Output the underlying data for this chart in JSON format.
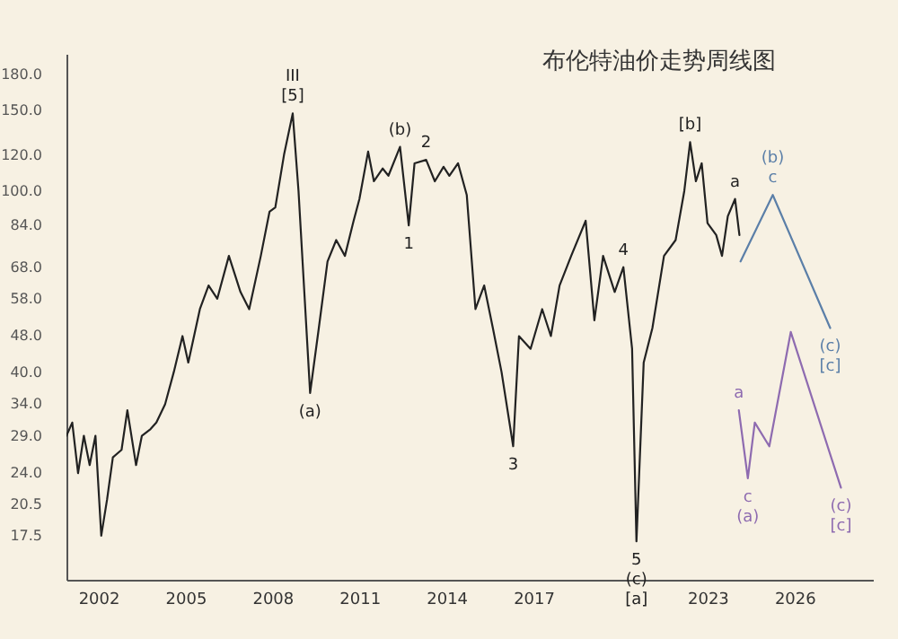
{
  "chart_data": {
    "type": "line",
    "title": "布伦特油价走势周线图",
    "log": true,
    "grid": false,
    "xlim": [
      2000.9,
      2028.7
    ],
    "xticks": [
      2002,
      2005,
      2008,
      2011,
      2014,
      2017,
      2023,
      2026
    ],
    "ylim": [
      14,
      200
    ],
    "yticks": [
      {
        "value": 17.5,
        "label": "17.5"
      },
      {
        "value": 20.5,
        "label": "20.5"
      },
      {
        "value": 24,
        "label": "24.0"
      },
      {
        "value": 29,
        "label": "29.0"
      },
      {
        "value": 34,
        "label": "34.0"
      },
      {
        "value": 40,
        "label": "40.0"
      },
      {
        "value": 48,
        "label": "48.0"
      },
      {
        "value": 58,
        "label": "58.0"
      },
      {
        "value": 68,
        "label": "68.0"
      },
      {
        "value": 84,
        "label": "84.0"
      },
      {
        "value": 100,
        "label": "100.0"
      },
      {
        "value": 120,
        "label": "120.0"
      },
      {
        "value": 150,
        "label": "150.0"
      },
      {
        "value": 180,
        "label": "180.0"
      }
    ],
    "series": [
      {
        "color": "#222222",
        "x": [
          2000.9,
          2001.1,
          2001.3,
          2001.5,
          2001.7,
          2001.9,
          2002.1,
          2002.3,
          2002.5,
          2002.8,
          2003.0,
          2003.3,
          2003.5,
          2003.8,
          2004.0,
          2004.3,
          2004.6,
          2004.9,
          2005.1,
          2005.5,
          2005.8,
          2006.1,
          2006.5,
          2006.9,
          2007.2,
          2007.6,
          2007.9,
          2008.1,
          2008.4,
          2008.7,
          2008.9,
          2009.1,
          2009.3,
          2009.6,
          2009.9,
          2010.2,
          2010.5,
          2010.8,
          2011.0,
          2011.3,
          2011.5,
          2011.8,
          2012.0,
          2012.4,
          2012.7,
          2012.9,
          2013.3,
          2013.6,
          2013.9,
          2014.1,
          2014.4,
          2014.7,
          2015.0,
          2015.3,
          2015.6,
          2015.9,
          2016.3,
          2016.5,
          2016.9,
          2017.3,
          2017.6,
          2017.9,
          2018.3,
          2018.8,
          2019.1,
          2019.4,
          2019.8,
          2020.1,
          2020.4,
          2020.55,
          2020.8,
          2021.1,
          2021.5,
          2021.9,
          2022.2,
          2022.4,
          2022.6,
          2022.8,
          2023.0,
          2023.3,
          2023.5,
          2023.7,
          2023.95,
          2024.1
        ],
        "values": [
          29,
          31,
          24,
          29,
          25,
          29,
          17.5,
          21,
          26,
          27,
          33,
          25,
          29,
          30,
          31,
          34,
          40,
          48,
          42,
          55,
          62,
          58,
          72,
          60,
          55,
          72,
          90,
          92,
          120,
          148,
          100,
          60,
          36,
          50,
          70,
          78,
          72,
          86,
          96,
          122,
          105,
          112,
          108,
          125,
          84,
          115,
          117,
          105,
          113,
          108,
          115,
          98,
          55,
          62,
          50,
          40,
          27.5,
          48,
          45,
          55,
          48,
          62,
          72,
          86,
          52,
          72,
          60,
          68,
          45,
          17,
          42,
          50,
          72,
          78,
          100,
          128,
          105,
          115,
          85,
          80,
          72,
          88,
          96,
          80
        ]
      },
      {
        "color": "#5b7fa8",
        "x": [
          2024.14,
          2025.25,
          2027.23
        ],
        "values": [
          70,
          98,
          50
        ]
      },
      {
        "color": "#8e6bb0",
        "x": [
          2024.08,
          2024.39,
          2024.63,
          2025.13,
          2025.87,
          2027.6
        ],
        "values": [
          33,
          23.4,
          31,
          27.5,
          49,
          22.3
        ]
      }
    ],
    "annotations": [
      {
        "text": "III\n[5]",
        "x": 2008.7,
        "y": 148
      },
      {
        "text": "(a)",
        "x": 2009.3,
        "y": 36
      },
      {
        "text": "(b)",
        "x": 2012.4,
        "y": 125
      },
      {
        "text": "1",
        "x": 2012.7,
        "y": 84
      },
      {
        "text": "2",
        "x": 2013.3,
        "y": 117
      },
      {
        "text": "3",
        "x": 2016.3,
        "y": 27.5
      },
      {
        "text": "4",
        "x": 2020.1,
        "y": 68
      },
      {
        "text": "5\n(c)\n[a]",
        "x": 2020.55,
        "y": 17
      },
      {
        "text": "[b]",
        "x": 2022.4,
        "y": 128
      },
      {
        "text": "a",
        "x": 2023.95,
        "y": 96
      },
      {
        "text": "(b)\nc",
        "x": 2025.25,
        "y": 98
      },
      {
        "text": "(c)\n[c]",
        "x": 2027.23,
        "y": 50
      },
      {
        "text": "a",
        "x": 2024.08,
        "y": 33
      },
      {
        "text": "c\n(a)",
        "x": 2024.39,
        "y": 23.4
      },
      {
        "text": "(c)\n[c]",
        "x": 2027.6,
        "y": 22.3
      }
    ]
  }
}
